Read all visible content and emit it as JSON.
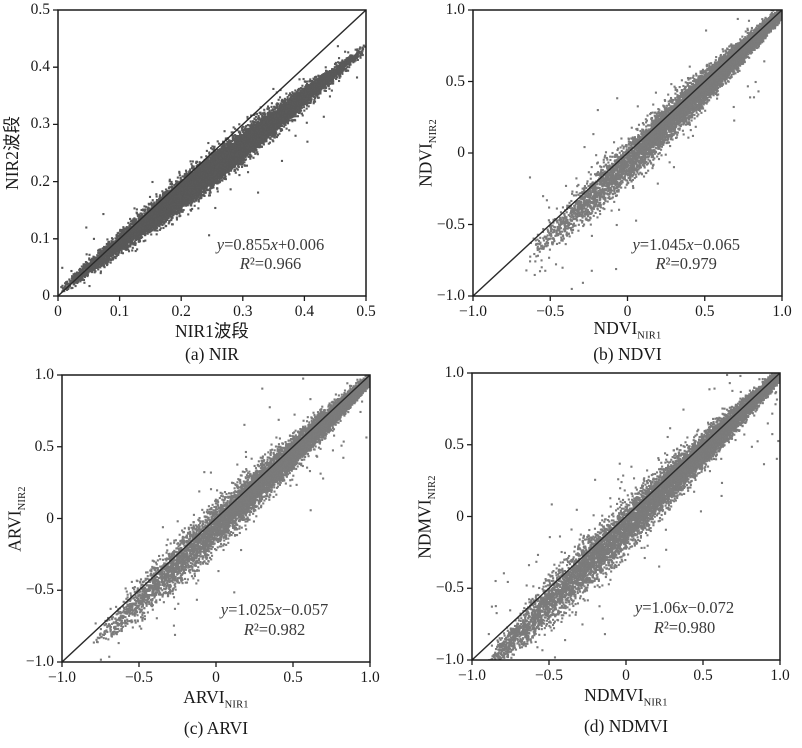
{
  "figure": {
    "background": "#ffffff",
    "text_color": "#1a1a1a",
    "axis_color": "#1a1a1a",
    "identity_line_color": "#2b2b2b"
  },
  "chart_data": [
    {
      "type": "scatter",
      "caption": "(a) NIR",
      "xlabel": {
        "base": "NIR1波段",
        "sub": ""
      },
      "ylabel": {
        "base": "NIR2波段",
        "sub": ""
      },
      "xlim": [
        0,
        0.5
      ],
      "ylim": [
        0,
        0.5
      ],
      "xticks": {
        "values": [
          0,
          0.1,
          0.2,
          0.3,
          0.4,
          0.5
        ],
        "labels": [
          "0",
          "0.1",
          "0.2",
          "0.3",
          "0.4",
          "0.5"
        ]
      },
      "yticks": {
        "values": [
          0,
          0.1,
          0.2,
          0.3,
          0.4,
          0.5
        ],
        "labels": [
          "0",
          "0.1",
          "0.2",
          "0.3",
          "0.4",
          "0.5"
        ]
      },
      "fit": {
        "slope": 0.855,
        "intercept": 0.006,
        "equation": "y=0.855x+0.006",
        "r2": "R²=0.966"
      },
      "identity_line": {
        "from": [
          0,
          0
        ],
        "to": [
          0.5,
          0.5
        ]
      },
      "points_style": {
        "color": "#595959",
        "size": 2.1
      },
      "cloud": {
        "n": 14000,
        "x_min": 0.004,
        "x_max": 0.5,
        "x_dist": "triangular",
        "skew": 1,
        "noise_sd": 0.013,
        "sd_profile": "symmetric",
        "outliers": 55,
        "outlier_sd_mult": 3.4,
        "seed": 7
      }
    },
    {
      "type": "scatter",
      "caption": "(b) NDVI",
      "xlabel": {
        "base": "NDVI",
        "sub": "NIR1"
      },
      "ylabel": {
        "base": "NDVI",
        "sub": "NIR2"
      },
      "xlim": [
        -1,
        1
      ],
      "ylim": [
        -1,
        1
      ],
      "xticks": {
        "values": [
          -1,
          -0.5,
          0,
          0.5,
          1
        ],
        "labels": [
          "−1.0",
          "−0.5",
          "0",
          "0.5",
          "1.0"
        ]
      },
      "yticks": {
        "values": [
          -1,
          -0.5,
          0,
          0.5,
          1
        ],
        "labels": [
          "−1.0",
          "−0.5",
          "0",
          "0.5",
          "1.0"
        ]
      },
      "fit": {
        "slope": 1.045,
        "intercept": -0.065,
        "equation": "y=1.045x−0.065",
        "r2": "R²=0.979"
      },
      "identity_line": {
        "from": [
          -1,
          -1
        ],
        "to": [
          1,
          1
        ]
      },
      "points_style": {
        "color": "#7b7b7b",
        "size": 2.1
      },
      "cloud": {
        "n": 10000,
        "x_min": -0.66,
        "x_max": 1.0,
        "x_dist": "power",
        "skew": 0.45,
        "noise_sd": 0.075,
        "sd_profile": "asymmetric",
        "outliers": 110,
        "outlier_sd_mult": 3.2,
        "seed": 21
      }
    },
    {
      "type": "scatter",
      "caption": "(c) ARVI",
      "xlabel": {
        "base": "ARVI",
        "sub": "NIR1"
      },
      "ylabel": {
        "base": "ARVI",
        "sub": "NIR2"
      },
      "xlim": [
        -1,
        1
      ],
      "ylim": [
        -1,
        1
      ],
      "xticks": {
        "values": [
          -1,
          -0.5,
          0,
          0.5,
          1
        ],
        "labels": [
          "−1.0",
          "−0.5",
          "0",
          "0.5",
          "1.0"
        ]
      },
      "yticks": {
        "values": [
          -1,
          -0.5,
          0,
          0.5,
          1
        ],
        "labels": [
          "−1.0",
          "−0.5",
          "0",
          "0.5",
          "1.0"
        ]
      },
      "fit": {
        "slope": 1.025,
        "intercept": -0.057,
        "equation": "y=1.025x−0.057",
        "r2": "R²=0.982"
      },
      "identity_line": {
        "from": [
          -1,
          -1
        ],
        "to": [
          1,
          1
        ]
      },
      "points_style": {
        "color": "#7b7b7b",
        "size": 2.1
      },
      "cloud": {
        "n": 10000,
        "x_min": -0.8,
        "x_max": 1.0,
        "x_dist": "power",
        "skew": 0.5,
        "noise_sd": 0.078,
        "sd_profile": "asymmetric",
        "outliers": 120,
        "outlier_sd_mult": 3.2,
        "seed": 33
      }
    },
    {
      "type": "scatter",
      "caption": "(d) NDMVI",
      "xlabel": {
        "base": "NDMVI",
        "sub": "NIR1"
      },
      "ylabel": {
        "base": "NDMVI",
        "sub": "NIR2"
      },
      "xlim": [
        -1,
        1
      ],
      "ylim": [
        -1,
        1
      ],
      "xticks": {
        "values": [
          -1,
          -0.5,
          0,
          0.5,
          1
        ],
        "labels": [
          "−1.0",
          "−0.5",
          "0",
          "0.5",
          "1.0"
        ]
      },
      "yticks": {
        "values": [
          -1,
          -0.5,
          0,
          0.5,
          1
        ],
        "labels": [
          "−1.0",
          "−0.5",
          "0",
          "0.5",
          "1.0"
        ]
      },
      "fit": {
        "slope": 1.06,
        "intercept": -0.072,
        "equation": "y=1.06x−0.072",
        "r2": "R²=0.980"
      },
      "identity_line": {
        "from": [
          -1,
          -1
        ],
        "to": [
          1,
          1
        ]
      },
      "points_style": {
        "color": "#7b7b7b",
        "size": 2.1
      },
      "cloud": {
        "n": 10000,
        "x_min": -0.9,
        "x_max": 1.0,
        "x_dist": "power",
        "skew": 0.62,
        "noise_sd": 0.085,
        "sd_profile": "asymmetric",
        "outliers": 170,
        "outlier_sd_mult": 3.2,
        "seed": 55
      }
    }
  ]
}
